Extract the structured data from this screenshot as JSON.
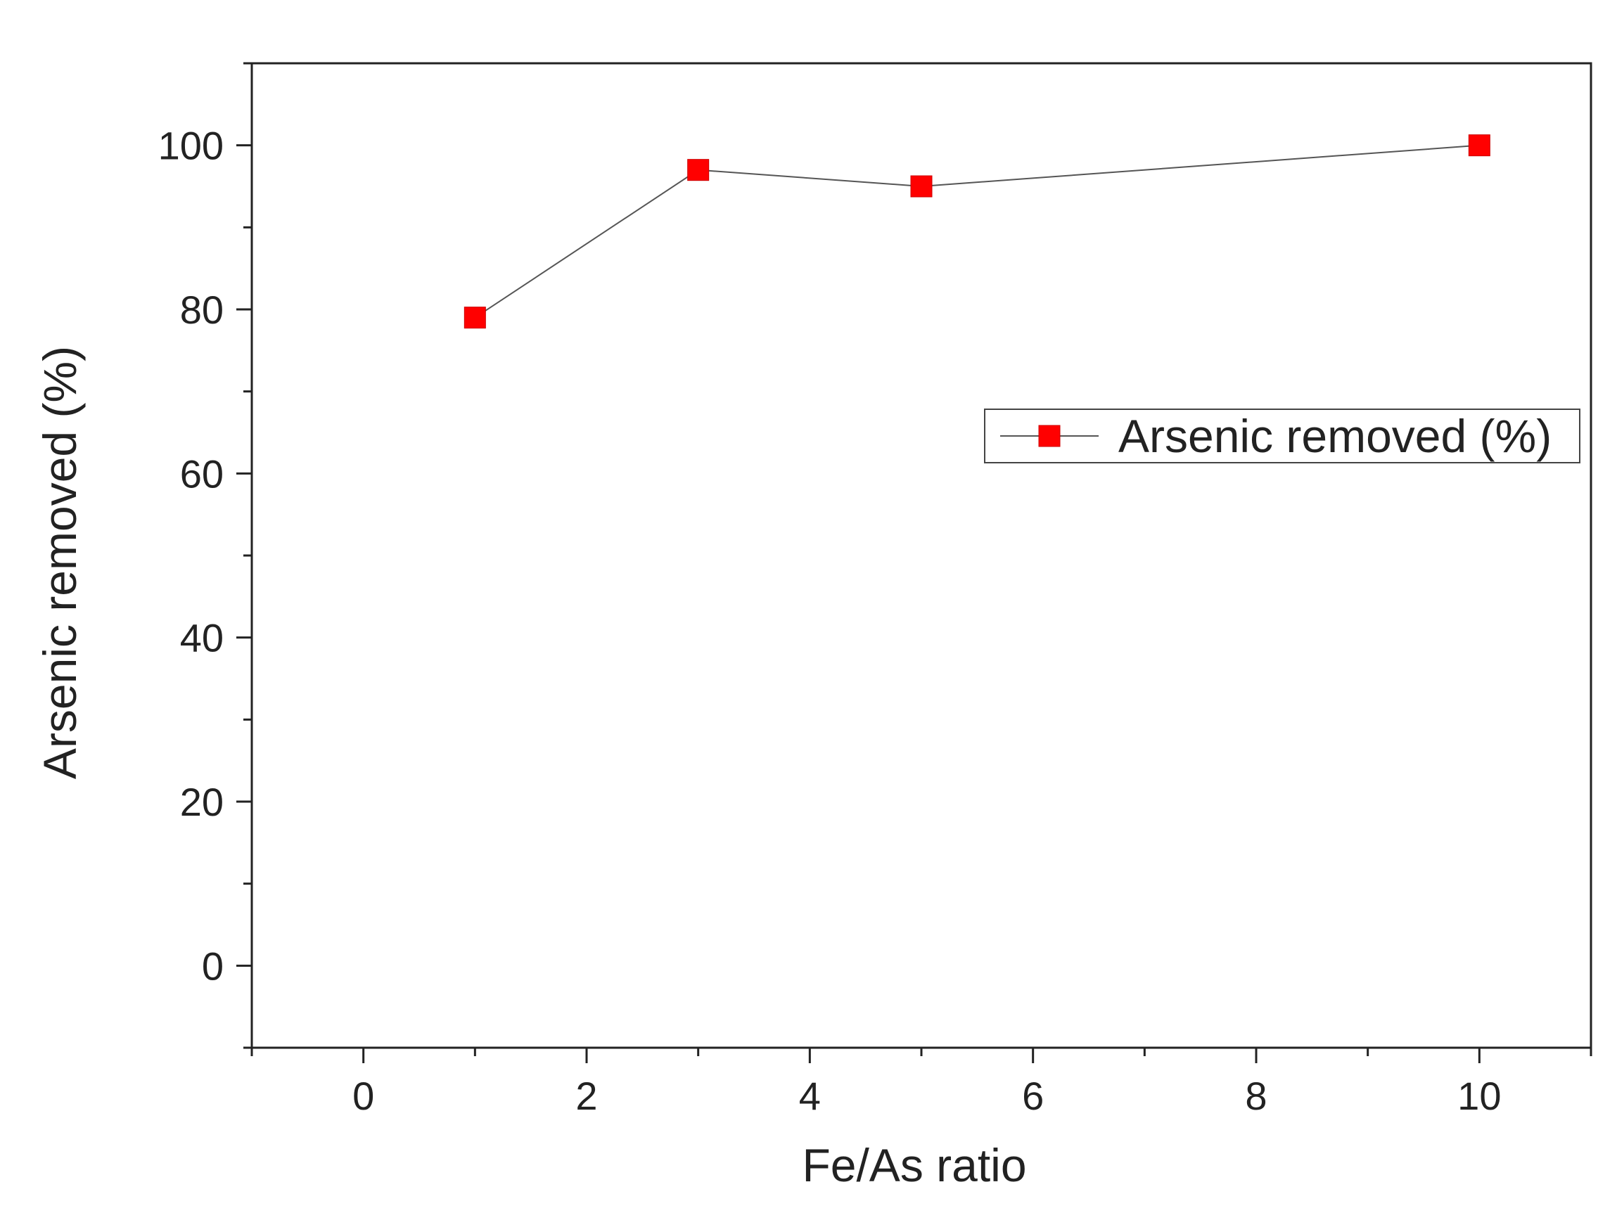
{
  "chart_data": {
    "type": "line",
    "title": "",
    "xlabel": "Fe/As ratio",
    "ylabel": "Arsenic removed (%)",
    "xlim": [
      -1,
      11
    ],
    "ylim": [
      -10,
      110
    ],
    "x_ticks": [
      0,
      2,
      4,
      6,
      8,
      10
    ],
    "y_ticks": [
      0,
      20,
      40,
      60,
      80,
      100
    ],
    "x_minor_step": 1,
    "y_minor_step": 10,
    "grid": false,
    "legend_position": "middle-right",
    "series": [
      {
        "name": "Arsenic removed (%)",
        "x": [
          1,
          3,
          5,
          10
        ],
        "y": [
          79,
          97,
          95,
          100
        ],
        "marker": "square",
        "marker_color": "#ff0000",
        "line_color": "#555555"
      }
    ]
  }
}
